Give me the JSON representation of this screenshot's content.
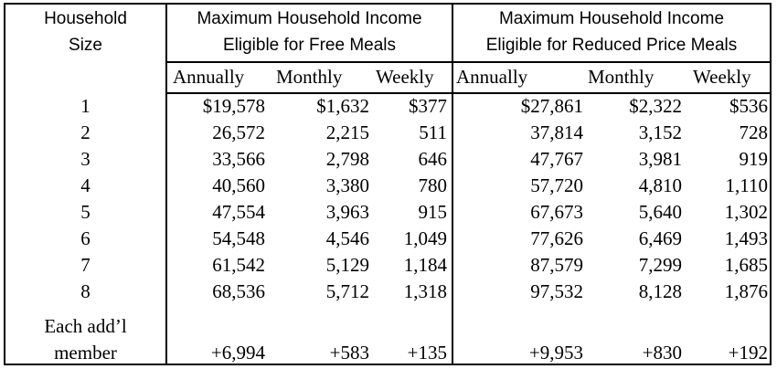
{
  "header": {
    "size_line1": "Household",
    "size_line2": "Size",
    "free_line1": "Maximum Household Income",
    "free_line2": "Eligible for Free Meals",
    "reduced_line1": "Maximum Household Income",
    "reduced_line2": "Eligible for Reduced Price Meals"
  },
  "subheaders": [
    "Annually",
    "Monthly",
    "Weekly",
    "Annually",
    "Monthly",
    "Weekly"
  ],
  "rows": [
    {
      "size": "1",
      "values": [
        "$19,578",
        "$1,632",
        "$377",
        "$27,861",
        "$2,322",
        "$536"
      ]
    },
    {
      "size": "2",
      "values": [
        "26,572",
        "2,215",
        "511",
        "37,814",
        "3,152",
        "728"
      ]
    },
    {
      "size": "3",
      "values": [
        "33,566",
        "2,798",
        "646",
        "47,767",
        "3,981",
        "919"
      ]
    },
    {
      "size": "4",
      "values": [
        "40,560",
        "3,380",
        "780",
        "57,720",
        "4,810",
        "1,110"
      ]
    },
    {
      "size": "5",
      "values": [
        "47,554",
        "3,963",
        "915",
        "67,673",
        "5,640",
        "1,302"
      ]
    },
    {
      "size": "6",
      "values": [
        "54,548",
        "4,546",
        "1,049",
        "77,626",
        "6,469",
        "1,493"
      ]
    },
    {
      "size": "7",
      "values": [
        "61,542",
        "5,129",
        "1,184",
        "87,579",
        "7,299",
        "1,685"
      ]
    },
    {
      "size": "8",
      "values": [
        "68,536",
        "5,712",
        "1,318",
        "97,532",
        "8,128",
        "1,876"
      ]
    }
  ],
  "additional": {
    "label_line1": "Each add’l",
    "label_line2": "member",
    "values": [
      "+6,994",
      "+583",
      "+135",
      "+9,953",
      "+830",
      "+192"
    ]
  }
}
